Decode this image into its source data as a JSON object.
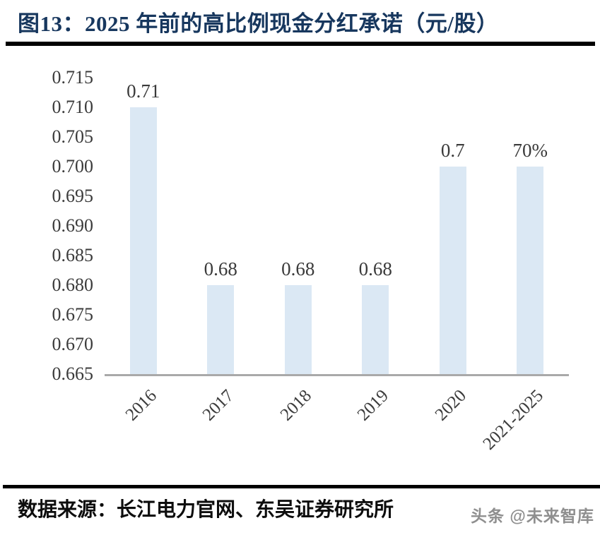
{
  "figure": {
    "title": "图13：2025 年前的高比例现金分红承诺（元/股）",
    "source_label": "数据来源：长江电力官网、东吴证券研究所",
    "watermark": "头条 @未来智库"
  },
  "chart_data": {
    "type": "bar",
    "title": "2025 年前的高比例现金分红承诺（元/股）",
    "categories": [
      "2016",
      "2017",
      "2018",
      "2019",
      "2020",
      "2021-2025"
    ],
    "values": [
      0.71,
      0.68,
      0.68,
      0.68,
      0.7,
      0.7
    ],
    "value_labels": [
      "0.71",
      "0.68",
      "0.68",
      "0.68",
      "0.7",
      "70%"
    ],
    "xlabel": "",
    "ylabel": "",
    "ylim": [
      0.665,
      0.715
    ],
    "ytick_step": 0.005,
    "yticks": [
      "0.715",
      "0.710",
      "0.705",
      "0.700",
      "0.695",
      "0.690",
      "0.685",
      "0.680",
      "0.675",
      "0.670",
      "0.665"
    ],
    "grid": false,
    "legend": "none",
    "x_label_rotation_deg": 45,
    "bar_color": "#dbe8f4",
    "axis_line_color": "#a9a9a9",
    "tick_label_color": "#3b3b3b",
    "title_color": "#17375e"
  }
}
